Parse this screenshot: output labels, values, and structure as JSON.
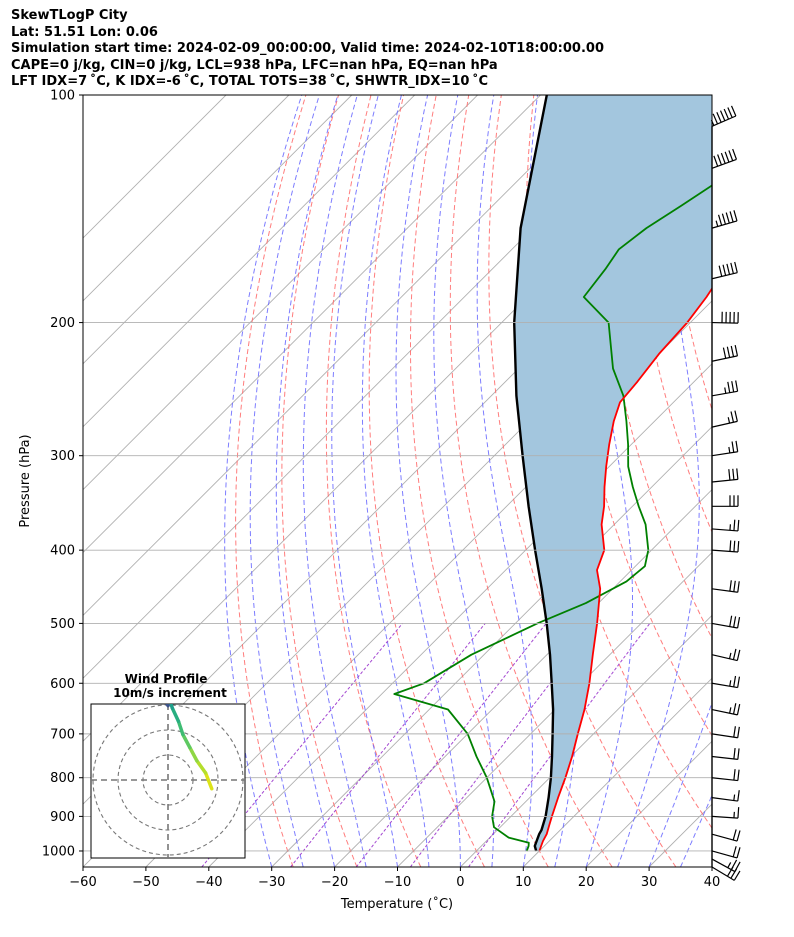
{
  "header": {
    "line1": "SkewTLogP City",
    "line2": "Lat: 51.51   Lon: 0.06",
    "line3": "Simulation start time: 2024-02-09_00:00:00, Valid time: 2024-02-10T18:00:00.00",
    "line4": "CAPE=0 j/kg, CIN=0 j/kg, LCL=938 hPa, LFC=nan hPa, EQ=nan hPa",
    "line5": "LFT IDX=7 ˚C, K IDX=-6 ˚C, TOTAL TOTS=38 ˚C, SHWTR_IDX=10 ˚C"
  },
  "colors": {
    "temperature": "#ff0000",
    "dewpoint": "#008000",
    "parcel": "#000000",
    "shade": "#a3c6de",
    "dry_adiabat": "#ff6666",
    "moist_adiabat": "#6666ff",
    "mixing_ratio": "#9933cc",
    "isotherm": "#b0b0b0"
  },
  "chart_data": {
    "type": "line",
    "xlabel": "Temperature (˚C)",
    "ylabel": "Pressure (hPa)",
    "xlim": [
      -60,
      40
    ],
    "ylim": [
      1050,
      100
    ],
    "y_scale": "log",
    "skew": true,
    "x_ticks": [
      -60,
      -50,
      -40,
      -30,
      -20,
      -10,
      0,
      10,
      20,
      30,
      40
    ],
    "x_tick_labels": [
      "−60",
      "−50",
      "−40",
      "−30",
      "−20",
      "−10",
      "0",
      "10",
      "20",
      "30",
      "40"
    ],
    "y_ticks": [
      1000,
      900,
      800,
      700,
      600,
      500,
      400,
      300,
      200,
      100
    ],
    "y_tick_labels": [
      "1000",
      "900",
      "800",
      "700",
      "600",
      "500",
      "400",
      "300",
      "200",
      "100"
    ],
    "grid": true,
    "series": [
      {
        "key": "temperature",
        "pressure": [
          1000,
          970,
          950,
          925,
          900,
          850,
          800,
          750,
          700,
          650,
          600,
          550,
          500,
          450,
          425,
          400,
          370,
          350,
          330,
          310,
          290,
          270,
          255,
          240,
          220,
          200,
          185,
          170,
          160,
          150,
          140,
          130,
          120,
          110,
          100
        ],
        "values": [
          10,
          9,
          8.5,
          7.5,
          6.5,
          4.5,
          2.5,
          0.2,
          -2.5,
          -5.3,
          -8.7,
          -12.7,
          -17,
          -22,
          -25.5,
          -27.5,
          -32,
          -34.5,
          -37.5,
          -40.5,
          -43.5,
          -46.5,
          -48.5,
          -49,
          -50,
          -50.5,
          -51.5,
          -53,
          -54,
          -54.5,
          -56.5,
          -57.5,
          -59.5,
          -60.5,
          -61.5
        ]
      },
      {
        "key": "dewpoint",
        "pressure": [
          1000,
          985,
          975,
          960,
          930,
          900,
          860,
          800,
          750,
          700,
          650,
          620,
          600,
          550,
          500,
          470,
          440,
          420,
          400,
          370,
          350,
          330,
          310,
          290,
          270,
          250,
          230,
          200,
          185,
          170,
          160,
          150,
          140,
          130,
          120,
          110,
          100
        ],
        "values": [
          8,
          7.5,
          7,
          3,
          -1,
          -3,
          -5,
          -10,
          -15,
          -20,
          -27,
          -38,
          -35,
          -32,
          -26.5,
          -22,
          -19,
          -18.5,
          -20.5,
          -25,
          -29,
          -33,
          -37,
          -40.5,
          -44.5,
          -49,
          -55,
          -63,
          -71,
          -72,
          -73,
          -72,
          -70,
          -68,
          -66,
          -64,
          -61
        ]
      },
      {
        "key": "parcel",
        "pressure": [
          1000,
          985,
          950,
          938,
          900,
          850,
          800,
          750,
          700,
          650,
          600,
          550,
          500,
          450,
          400,
          350,
          300,
          250,
          200,
          150,
          100
        ],
        "values": [
          9.5,
          8.5,
          7.3,
          7,
          5.5,
          3,
          0.2,
          -3,
          -6.5,
          -10.3,
          -14.7,
          -19.5,
          -25,
          -31.3,
          -38.5,
          -46.5,
          -55.5,
          -66,
          -78,
          -92,
          -109
        ]
      }
    ],
    "shaded_region": "between temperature and parcel",
    "background_lines": [
      "dry adiabats",
      "moist adiabats",
      "mixing ratio lines",
      "skewed isotherms"
    ],
    "wind_barbs": {
      "pressure": [
        1050,
        1025,
        1000,
        950,
        900,
        850,
        800,
        750,
        700,
        650,
        600,
        550,
        500,
        450,
        400,
        375,
        350,
        325,
        300,
        275,
        250,
        225,
        200,
        175,
        150,
        125,
        110
      ],
      "u_kt": [
        -25,
        -22,
        -18,
        -18,
        -15,
        -15,
        -18,
        -18,
        -20,
        -24,
        -24,
        -26,
        -28,
        -30,
        -28,
        -26,
        -28,
        -30,
        -26,
        -22,
        -34,
        -38,
        -50,
        -50,
        -52,
        -55,
        -58
      ],
      "v_kt": [
        15,
        12,
        5,
        5,
        1,
        2,
        2,
        2,
        3,
        5,
        4,
        6,
        5,
        4,
        2,
        2,
        0,
        -3,
        -4,
        -5,
        -6,
        -8,
        1,
        -12,
        -15,
        -20,
        -25
      ]
    }
  },
  "hodograph": {
    "title": "Wind Profile",
    "subtitle": "10m/s increment",
    "increment_ms": 10,
    "rings": [
      1,
      2,
      3
    ],
    "trace": {
      "u": [
        5,
        4.3,
        3.3,
        2.5,
        1.7,
        1.2,
        0.5,
        0,
        -0.5,
        -1.1,
        -1.2,
        -1.1,
        -1.3
      ],
      "v": [
        -1,
        0.8,
        2.2,
        3.7,
        5.2,
        6.7,
        8.2,
        9.7,
        11.2,
        12.7,
        14.2,
        15.7,
        17.2
      ],
      "colors": [
        "#dce319",
        "#b4de2c",
        "#8fd744",
        "#5ec962",
        "#3fbc73",
        "#28ae80",
        "#1f9e89",
        "#25858e",
        "#2d708e",
        "#38598c",
        "#433e85",
        "#482878",
        "#440154"
      ]
    },
    "trace2": {
      "u": [
        0,
        -0.5,
        -0.8,
        -1.2,
        -1.5,
        -1.5,
        -1.8,
        -2
      ],
      "v": [
        8.5,
        9.5,
        10.5,
        11.5,
        12.5,
        13.5,
        14.5,
        15.5
      ],
      "colors": [
        "#3b528b",
        "#355f8d",
        "#2c728e",
        "#26828e",
        "#21918c",
        "#440154",
        "#46327e",
        "#440154"
      ]
    }
  }
}
